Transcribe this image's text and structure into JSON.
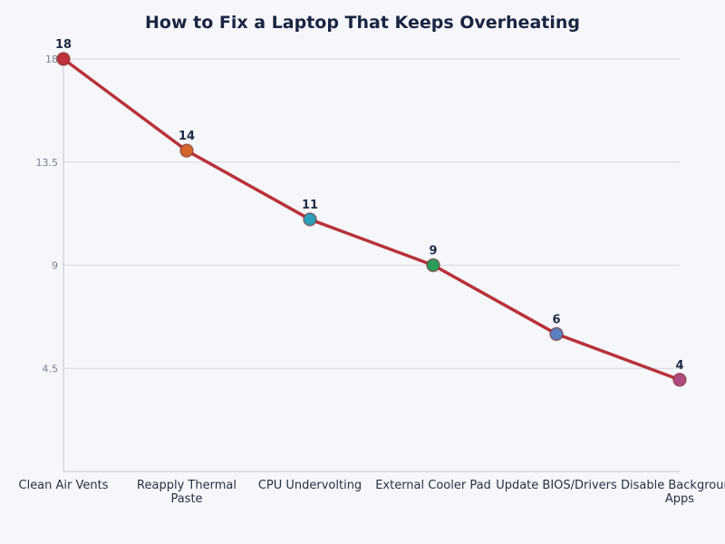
{
  "chart_data": {
    "type": "line",
    "title": "How to Fix a Laptop That Keeps Overheating",
    "xlabel": "",
    "ylabel": "",
    "categories": [
      "Clean Air Vents",
      "Reapply Thermal Paste",
      "CPU Undervolting",
      "External Cooler Pad",
      "Update BIOS/Drivers",
      "Disable Background Apps"
    ],
    "values": [
      18,
      14,
      11,
      9,
      6,
      4
    ],
    "data_labels": [
      "18",
      "14",
      "11",
      "9",
      "6",
      "4"
    ],
    "ylim": [
      0,
      18
    ],
    "yticks": [
      4.5,
      9,
      13.5,
      18
    ],
    "ytick_labels": [
      "4.5",
      "9",
      "13.5",
      "18"
    ],
    "grid": true,
    "line_color": "#b83238",
    "point_colors": [
      "#c0303a",
      "#d2662a",
      "#2aa0b8",
      "#2a9d5a",
      "#5b7fc0",
      "#b04a80"
    ]
  }
}
